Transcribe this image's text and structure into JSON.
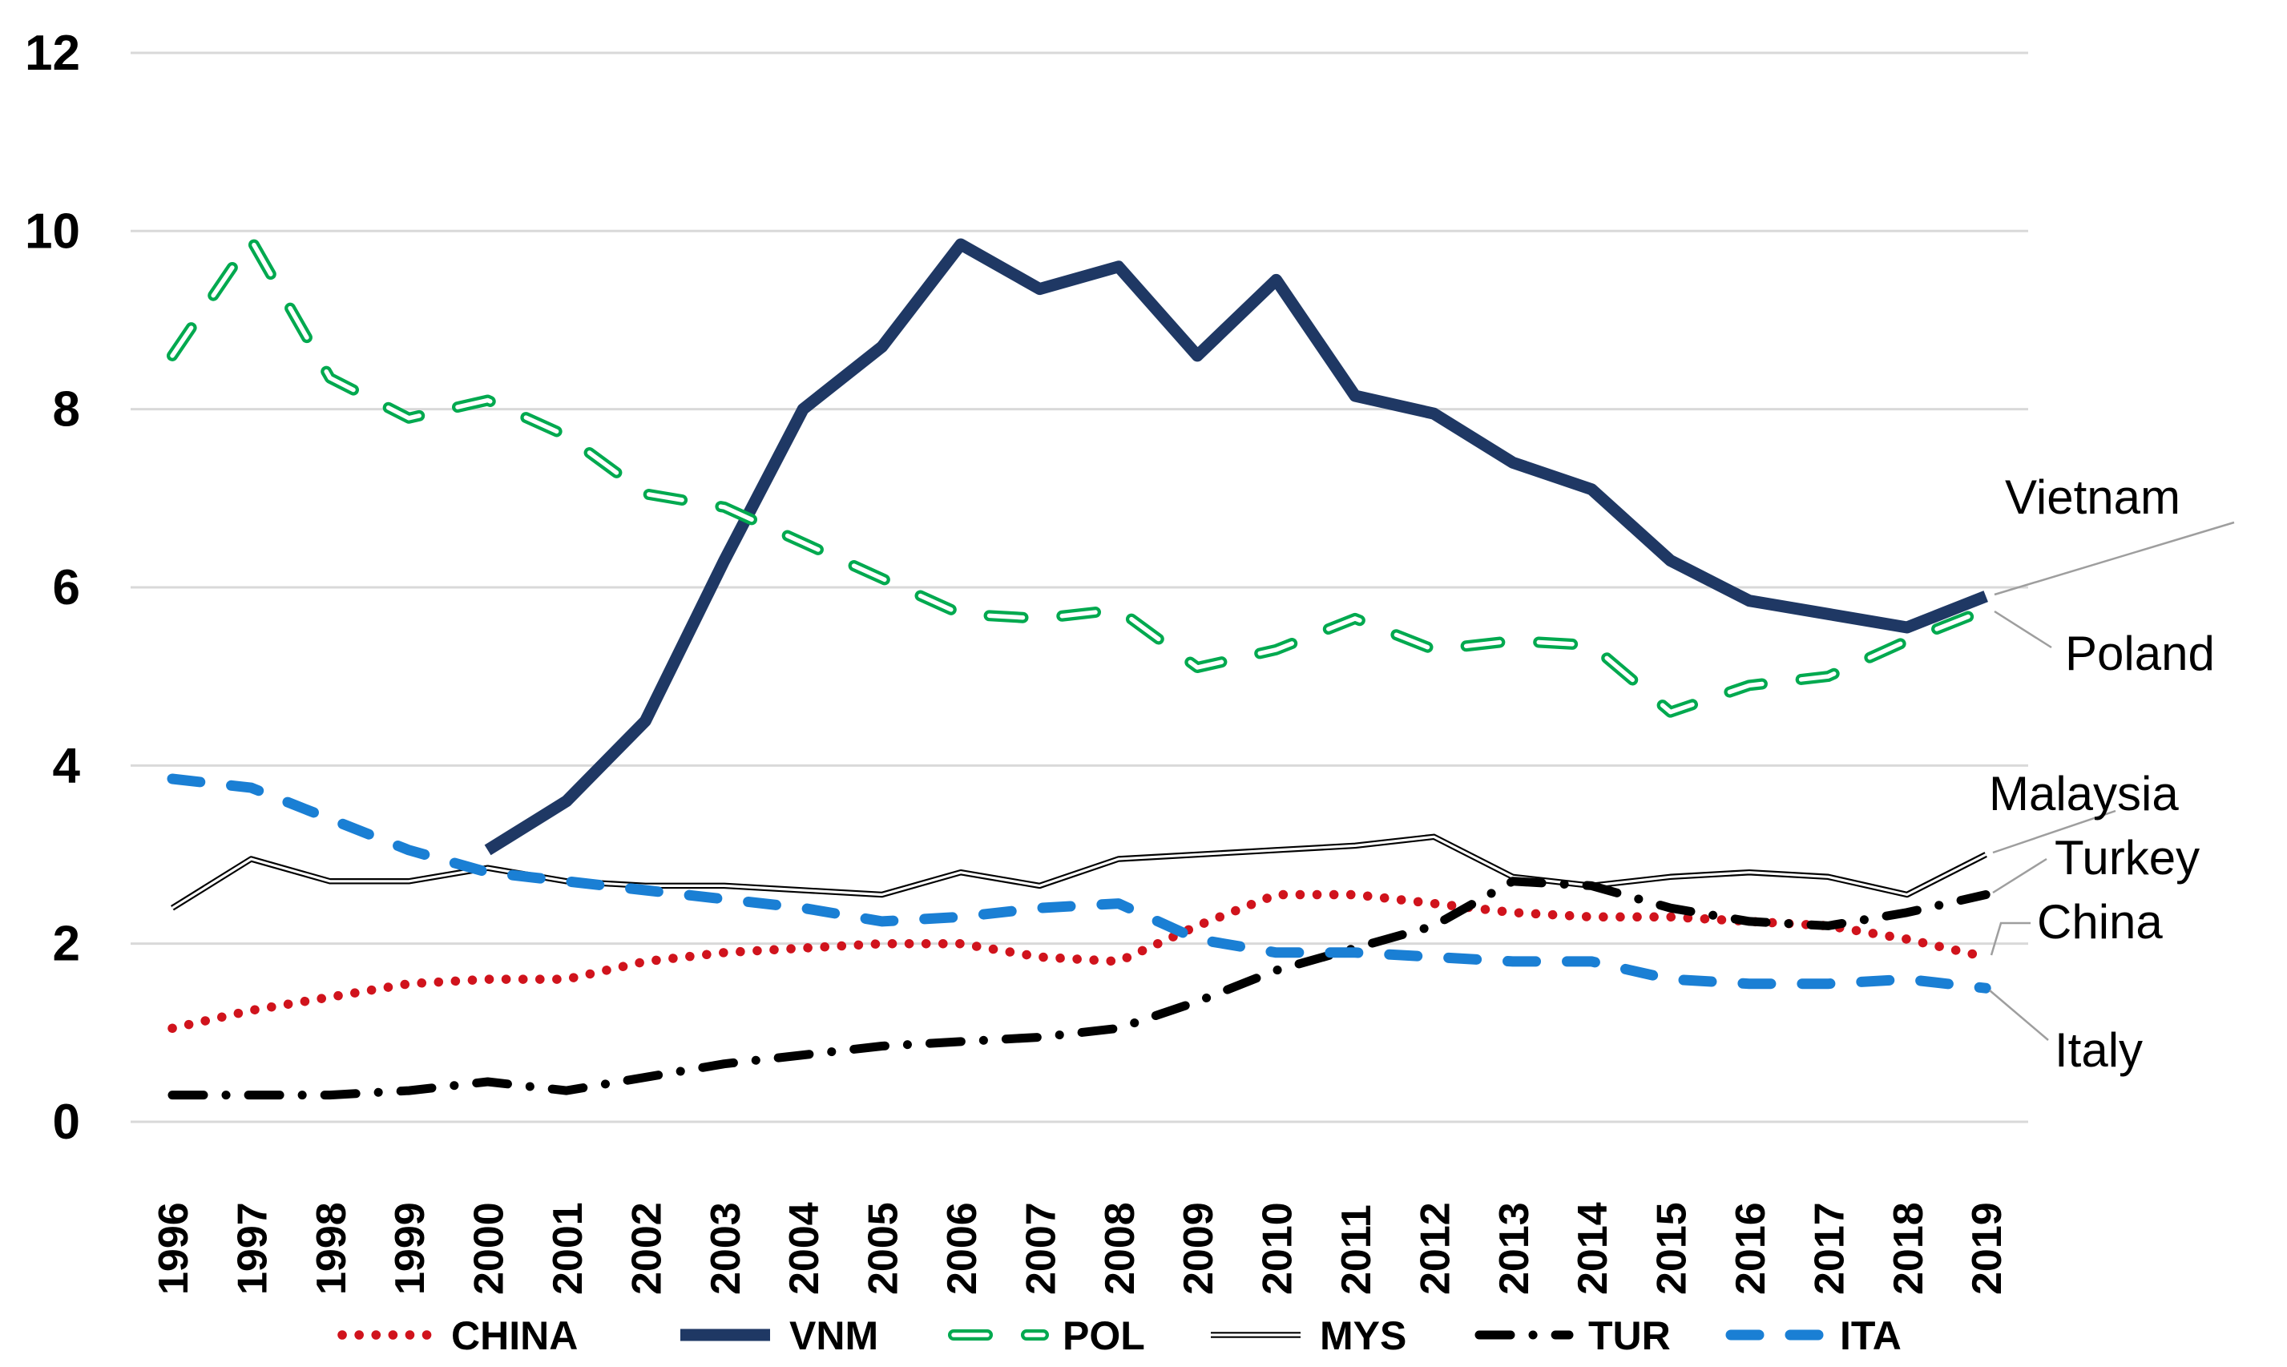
{
  "chart_data": {
    "type": "line",
    "title": "",
    "xlabel": "",
    "ylabel": "",
    "x": [
      1996,
      1997,
      1998,
      1999,
      2000,
      2001,
      2002,
      2003,
      2004,
      2005,
      2006,
      2007,
      2008,
      2009,
      2010,
      2011,
      2012,
      2013,
      2014,
      2015,
      2016,
      2017,
      2018,
      2019
    ],
    "ylim": [
      0,
      12
    ],
    "yticks": [
      0,
      2,
      4,
      6,
      8,
      10,
      12
    ],
    "grid": true,
    "legend_position": "bottom",
    "series": [
      {
        "id": "CHINA",
        "label": "CHINA",
        "annotation": "China",
        "color": "#d0131c",
        "style": "dotted",
        "values": [
          1.05,
          1.25,
          1.4,
          1.55,
          1.6,
          1.6,
          1.8,
          1.9,
          1.95,
          2.0,
          2.0,
          1.85,
          1.8,
          2.2,
          2.55,
          2.55,
          2.45,
          2.35,
          2.3,
          2.3,
          2.25,
          2.2,
          2.05,
          1.85
        ]
      },
      {
        "id": "VNM",
        "label": "VNM",
        "annotation": "Vietnam",
        "color": "#1f3864",
        "style": "solid-thick",
        "values": [
          null,
          null,
          null,
          null,
          3.05,
          3.6,
          4.5,
          6.3,
          8.0,
          8.7,
          9.85,
          9.35,
          9.6,
          8.6,
          9.45,
          8.15,
          7.95,
          7.4,
          7.1,
          6.3,
          5.85,
          5.7,
          5.55,
          5.9
        ]
      },
      {
        "id": "POL",
        "label": "POL",
        "annotation": "Poland",
        "color": "#00a94f",
        "style": "dashed-hollow",
        "values": [
          8.6,
          9.9,
          8.35,
          7.9,
          8.1,
          7.7,
          7.05,
          6.9,
          6.5,
          6.1,
          5.7,
          5.65,
          5.75,
          5.1,
          5.3,
          5.65,
          5.3,
          5.4,
          5.35,
          4.6,
          4.9,
          5.0,
          5.4,
          5.75
        ]
      },
      {
        "id": "MYS",
        "label": "MYS",
        "annotation": "Malaysia",
        "color": "#000000",
        "style": "double",
        "values": [
          2.4,
          2.95,
          2.7,
          2.7,
          2.85,
          2.7,
          2.65,
          2.65,
          2.6,
          2.55,
          2.8,
          2.65,
          2.95,
          3.0,
          3.05,
          3.1,
          3.2,
          2.75,
          2.65,
          2.75,
          2.8,
          2.75,
          2.55,
          3.0
        ]
      },
      {
        "id": "TUR",
        "label": "TUR",
        "annotation": "Turkey",
        "color": "#000000",
        "style": "dashdot",
        "values": [
          0.3,
          0.3,
          0.3,
          0.35,
          0.45,
          0.35,
          0.5,
          0.65,
          0.75,
          0.85,
          0.9,
          0.95,
          1.05,
          1.35,
          1.7,
          1.95,
          2.2,
          2.7,
          2.65,
          2.4,
          2.25,
          2.2,
          2.35,
          2.55
        ]
      },
      {
        "id": "ITA",
        "label": "ITA",
        "annotation": "Italy",
        "color": "#1a7fd4",
        "style": "dashed",
        "values": [
          3.85,
          3.75,
          3.4,
          3.05,
          2.8,
          2.7,
          2.6,
          2.5,
          2.4,
          2.25,
          2.3,
          2.4,
          2.45,
          2.05,
          1.9,
          1.9,
          1.85,
          1.8,
          1.8,
          1.6,
          1.55,
          1.55,
          1.6,
          1.5
        ]
      }
    ]
  },
  "colors": {
    "background": "#ffffff",
    "grid": "#d9d9d9",
    "leader": "#9e9e9e",
    "text": "#000000"
  }
}
